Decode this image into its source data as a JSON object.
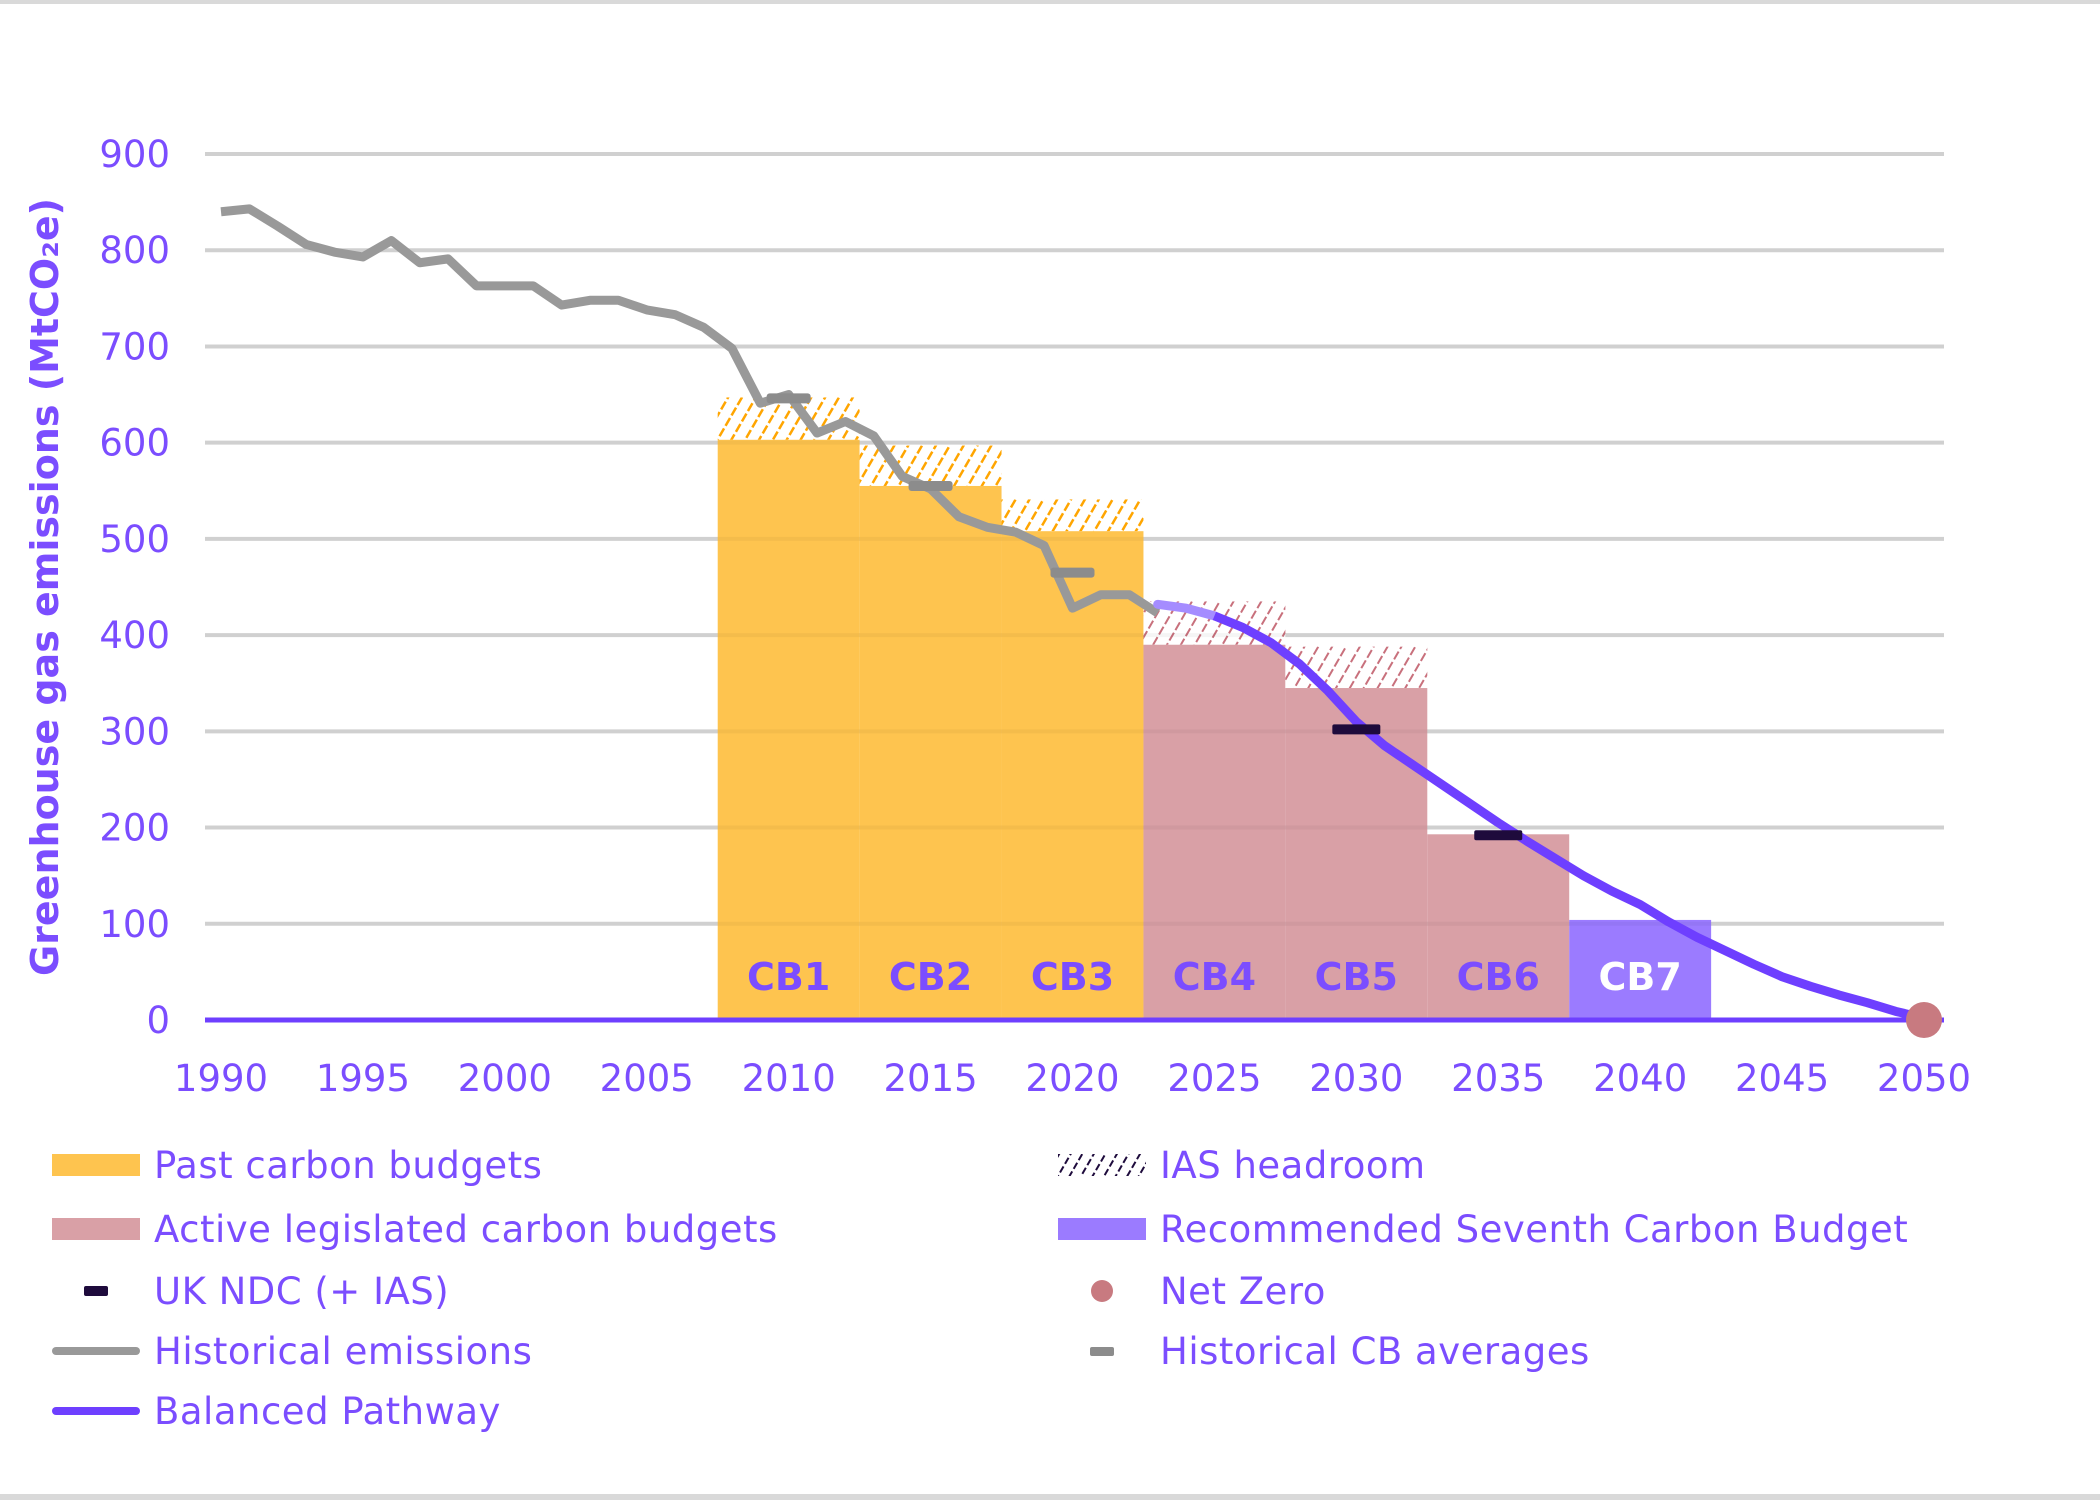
{
  "chart_data": {
    "type": "bar+line",
    "ylabel": "Greenhouse gas emissions (MtCO₂e)",
    "xlabel": "",
    "xlim": [
      1990,
      2050
    ],
    "ylim": [
      0,
      900
    ],
    "x_ticks": [
      "1990",
      "1995",
      "2000",
      "2005",
      "2010",
      "2015",
      "2020",
      "2025",
      "2030",
      "2035",
      "2040",
      "2045",
      "2050"
    ],
    "y_ticks": [
      "0",
      "100",
      "200",
      "300",
      "400",
      "500",
      "600",
      "700",
      "800",
      "900"
    ],
    "grid": "horizontal",
    "legend_position": "bottom",
    "colors": {
      "past_budget": "#fec44f",
      "past_hatch": "#ffa500",
      "active_budget": "#d9a0a6",
      "active_hatch": "#c8707c",
      "cb7": "#9b7bff",
      "pathway": "#6e3fff",
      "pathway_light": "#a58cff",
      "historical": "#999999",
      "ndc": "#1e0b3c",
      "net_zero": "#c87a80",
      "text": "#7b4dff",
      "grid": "#d9d9d9"
    },
    "budgets": [
      {
        "label": "CB1",
        "start": 2008,
        "end": 2012,
        "value": 603,
        "ias_top": 647,
        "kind": "past"
      },
      {
        "label": "CB2",
        "start": 2013,
        "end": 2017,
        "value": 555,
        "ias_top": 597,
        "kind": "past"
      },
      {
        "label": "CB3",
        "start": 2018,
        "end": 2022,
        "value": 508,
        "ias_top": 541,
        "kind": "past"
      },
      {
        "label": "CB4",
        "start": 2023,
        "end": 2027,
        "value": 390,
        "ias_top": 435,
        "kind": "active"
      },
      {
        "label": "CB5",
        "start": 2028,
        "end": 2032,
        "value": 345,
        "ias_top": 388,
        "kind": "active"
      },
      {
        "label": "CB6",
        "start": 2033,
        "end": 2037,
        "value": 193,
        "ias_top": 193,
        "kind": "active"
      },
      {
        "label": "CB7",
        "start": 2038,
        "end": 2042,
        "value": 104,
        "ias_top": 104,
        "kind": "recommended"
      }
    ],
    "historical_emissions": {
      "x": [
        1990,
        1991,
        1992,
        1993,
        1994,
        1995,
        1996,
        1997,
        1998,
        1999,
        2000,
        2001,
        2002,
        2003,
        2004,
        2005,
        2006,
        2007,
        2008,
        2009,
        2010,
        2011,
        2012,
        2013,
        2014,
        2015,
        2016,
        2017,
        2018,
        2019,
        2020,
        2021,
        2022,
        2023
      ],
      "y": [
        840,
        843,
        825,
        806,
        798,
        793,
        810,
        787,
        791,
        763,
        763,
        763,
        743,
        748,
        748,
        738,
        733,
        720,
        698,
        641,
        650,
        610,
        622,
        607,
        565,
        552,
        523,
        512,
        507,
        493,
        428,
        442,
        442,
        423
      ]
    },
    "historical_cb_averages": [
      {
        "x": 2010,
        "y": 646
      },
      {
        "x": 2015,
        "y": 555
      },
      {
        "x": 2020,
        "y": 465
      }
    ],
    "uk_ndc": [
      {
        "x": 2030,
        "y": 302
      },
      {
        "x": 2035,
        "y": 192
      }
    ],
    "balanced_pathway": {
      "x": [
        2023,
        2024,
        2025,
        2026,
        2027,
        2028,
        2029,
        2030,
        2031,
        2032,
        2033,
        2034,
        2035,
        2036,
        2037,
        2038,
        2039,
        2040,
        2041,
        2042,
        2043,
        2044,
        2045,
        2046,
        2047,
        2048,
        2049,
        2050
      ],
      "y": [
        432,
        428,
        420,
        408,
        392,
        370,
        342,
        310,
        285,
        265,
        245,
        225,
        205,
        186,
        168,
        150,
        134,
        120,
        102,
        86,
        72,
        58,
        45,
        35,
        26,
        18,
        9,
        2
      ]
    },
    "net_zero": {
      "x": 2050,
      "y": 0
    }
  },
  "legend": [
    {
      "label": "Past carbon budgets",
      "swatch": "past"
    },
    {
      "label": "IAS headroom",
      "swatch": "hatch"
    },
    {
      "label": "Active legislated carbon budgets",
      "swatch": "active"
    },
    {
      "label": "Recommended Seventh Carbon Budget",
      "swatch": "cb7"
    },
    {
      "label": "UK NDC (+ IAS)",
      "swatch": "ndc"
    },
    {
      "label": "Net Zero",
      "swatch": "netzero"
    },
    {
      "label": "Historical emissions",
      "swatch": "historical"
    },
    {
      "label": "Historical CB averages",
      "swatch": "cbavg"
    },
    {
      "label": "Balanced Pathway",
      "swatch": "pathway"
    }
  ]
}
